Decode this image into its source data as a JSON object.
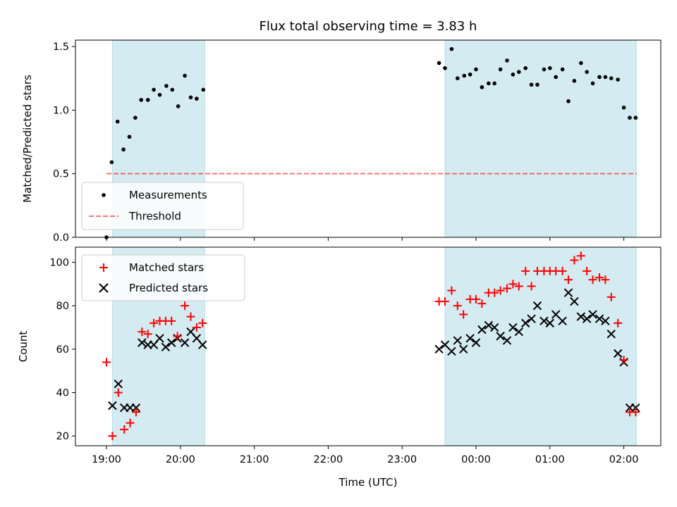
{
  "chart_data": [
    {
      "type": "scatter",
      "panel": "top",
      "title": "Flux total observing time = 3.83 h",
      "ylabel": "Matched/Predicted stars",
      "xlabel": "",
      "ylim": [
        0,
        1.55
      ],
      "yticks": [
        0,
        0.5,
        1.0,
        1.5
      ],
      "yticklabels": [
        "0.0",
        "0.5",
        "1.0",
        "1.5"
      ],
      "grid": false,
      "legend_position": "lower-left",
      "shaded_intervals": [
        [
          19.08,
          20.33
        ],
        [
          23.58,
          26.17
        ]
      ],
      "shade_color": "#d4ebf1",
      "series": [
        {
          "name": "Measurements",
          "kind": "scatter",
          "color": "#000000",
          "x": [
            19.0,
            19.07,
            19.15,
            19.23,
            19.31,
            19.39,
            19.47,
            19.56,
            19.64,
            19.72,
            19.81,
            19.89,
            19.97,
            20.06,
            20.14,
            20.22,
            20.31,
            23.5,
            23.58,
            23.67,
            23.75,
            23.84,
            23.92,
            24.0,
            24.08,
            24.17,
            24.25,
            24.33,
            24.42,
            24.5,
            24.58,
            24.67,
            24.75,
            24.83,
            24.92,
            25.0,
            25.08,
            25.17,
            25.25,
            25.33,
            25.42,
            25.5,
            25.58,
            25.67,
            25.75,
            25.83,
            25.92,
            26.0,
            26.08,
            26.16
          ],
          "y": [
            0.0,
            0.59,
            0.91,
            0.69,
            0.79,
            0.94,
            1.08,
            1.08,
            1.16,
            1.12,
            1.19,
            1.16,
            1.03,
            1.27,
            1.1,
            1.09,
            1.16,
            1.37,
            1.33,
            1.48,
            1.25,
            1.27,
            1.28,
            1.32,
            1.18,
            1.21,
            1.21,
            1.32,
            1.39,
            1.28,
            1.3,
            1.33,
            1.2,
            1.2,
            1.32,
            1.33,
            1.26,
            1.32,
            1.07,
            1.23,
            1.37,
            1.3,
            1.21,
            1.26,
            1.26,
            1.25,
            1.24,
            1.02,
            0.94,
            0.94
          ]
        },
        {
          "name": "Threshold",
          "kind": "hline",
          "color": "#ff0000",
          "opacity": 0.55,
          "y": 0.5,
          "x_range": [
            19.0,
            26.17
          ]
        }
      ]
    },
    {
      "type": "scatter",
      "panel": "bottom",
      "title": "",
      "xlabel": "Time (UTC)",
      "ylabel": "Count",
      "xlim": [
        18.58,
        26.5
      ],
      "ylim": [
        15.5,
        107
      ],
      "xticks": [
        19,
        20,
        21,
        22,
        23,
        24,
        25,
        26
      ],
      "xticklabels": [
        "19:00",
        "20:00",
        "21:00",
        "22:00",
        "23:00",
        "00:00",
        "01:00",
        "02:00"
      ],
      "yticks": [
        20,
        40,
        60,
        80,
        100
      ],
      "yticklabels": [
        "20",
        "40",
        "60",
        "80",
        "100"
      ],
      "grid": false,
      "legend_position": "upper-left",
      "shaded_intervals": [
        [
          19.08,
          20.33
        ],
        [
          23.58,
          26.17
        ]
      ],
      "shade_color": "#d4ebf1",
      "series": [
        {
          "name": "Matched stars",
          "kind": "plus",
          "color": "#ff0000",
          "x": [
            19.0,
            19.08,
            19.16,
            19.24,
            19.32,
            19.4,
            19.48,
            19.56,
            19.64,
            19.72,
            19.8,
            19.88,
            19.96,
            20.06,
            20.14,
            20.22,
            20.3,
            23.5,
            23.58,
            23.67,
            23.75,
            23.83,
            23.92,
            24.0,
            24.08,
            24.17,
            24.25,
            24.33,
            24.42,
            24.5,
            24.58,
            24.67,
            24.75,
            24.83,
            24.92,
            25.0,
            25.08,
            25.17,
            25.25,
            25.33,
            25.42,
            25.5,
            25.58,
            25.67,
            25.75,
            25.83,
            25.92,
            26.0,
            26.08,
            26.16
          ],
          "y": [
            54,
            20,
            40,
            23,
            26,
            31,
            68,
            67,
            72,
            73,
            73,
            73,
            66,
            80,
            75,
            70,
            72,
            82,
            82,
            87,
            80,
            76,
            83,
            83,
            81,
            86,
            86,
            87,
            88,
            90,
            89,
            96,
            89,
            96,
            96,
            96,
            96,
            96,
            92,
            101,
            103,
            96,
            92,
            93,
            92,
            84,
            72,
            55,
            31,
            31
          ]
        },
        {
          "name": "Predicted stars",
          "kind": "x",
          "color": "#000000",
          "x": [
            19.08,
            19.16,
            19.24,
            19.32,
            19.4,
            19.48,
            19.56,
            19.64,
            19.72,
            19.8,
            19.88,
            19.96,
            20.06,
            20.14,
            20.22,
            20.3,
            23.5,
            23.58,
            23.67,
            23.75,
            23.83,
            23.92,
            24.0,
            24.08,
            24.17,
            24.25,
            24.33,
            24.42,
            24.5,
            24.58,
            24.67,
            24.75,
            24.83,
            24.92,
            25.0,
            25.08,
            25.17,
            25.25,
            25.33,
            25.42,
            25.5,
            25.58,
            25.67,
            25.75,
            25.83,
            25.92,
            26.0,
            26.08,
            26.16
          ],
          "y": [
            34,
            44,
            33,
            33,
            33,
            63,
            62,
            62,
            65,
            61,
            63,
            65,
            63,
            68,
            65,
            62,
            60,
            62,
            59,
            64,
            60,
            65,
            63,
            69,
            71,
            70,
            66,
            64,
            70,
            68,
            72,
            74,
            80,
            73,
            72,
            76,
            73,
            86,
            82,
            75,
            74,
            76,
            74,
            73,
            67,
            58,
            54,
            33,
            33
          ]
        }
      ]
    }
  ]
}
